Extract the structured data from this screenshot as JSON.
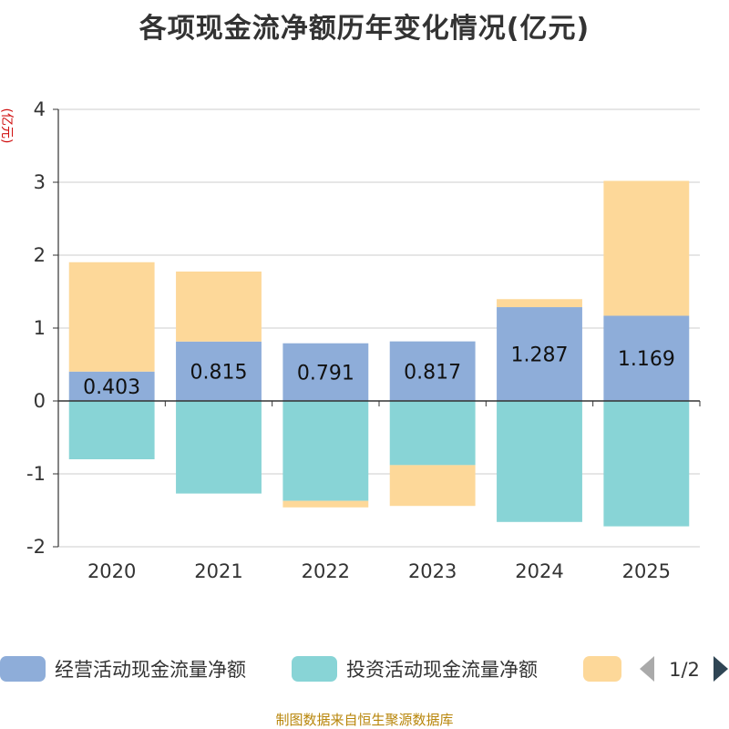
{
  "chart_data": {
    "type": "bar",
    "stacked": true,
    "title": "各项现金流净额历年变化情况(亿元)",
    "ylabel": "(亿元)",
    "categories": [
      "2020",
      "2021",
      "2022",
      "2023",
      "2024",
      "2025"
    ],
    "ylim": [
      -2,
      4
    ],
    "yticks": [
      -2,
      -1,
      0,
      1,
      2,
      3,
      4
    ],
    "grid": true,
    "series": [
      {
        "name": "经营活动现金流量净额",
        "color": "#8eadd9",
        "values": [
          0.403,
          0.815,
          0.791,
          0.817,
          1.287,
          1.169
        ],
        "labels": [
          "0.403",
          "0.815",
          "0.791",
          "0.817",
          "1.287",
          "1.169"
        ]
      },
      {
        "name": "投资活动现金流量净额",
        "color": "#88d4d6",
        "values": [
          -0.8,
          -1.27,
          -1.37,
          -0.88,
          -1.66,
          -1.72
        ]
      },
      {
        "name": "",
        "color": "#fdd899",
        "values": [
          1.5,
          0.96,
          -0.09,
          -0.56,
          0.11,
          1.85
        ]
      }
    ],
    "legend": {
      "position": "bottom",
      "page": "1/2"
    }
  },
  "source_note": "制图数据来自恒生聚源数据库"
}
